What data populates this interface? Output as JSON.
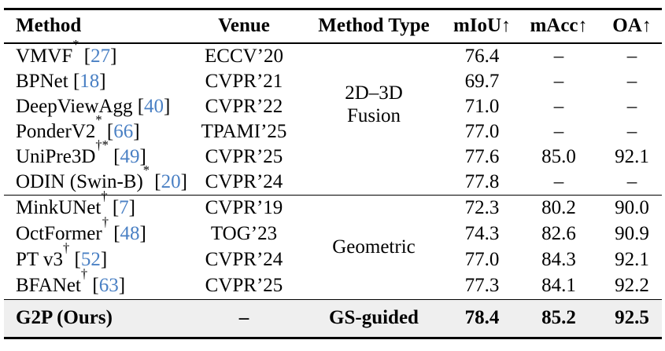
{
  "colors": {
    "cite_link": "#4a80c4",
    "highlight_row": "#efefef",
    "rule": "#000000",
    "text": "#000000"
  },
  "table": {
    "cite_brackets": [
      "[",
      "]"
    ],
    "columns": [
      {
        "label": "Method"
      },
      {
        "label": "Venue"
      },
      {
        "label": "Method Type"
      },
      {
        "label": "mIoU",
        "arrow": "↑"
      },
      {
        "label": "mAcc",
        "arrow": "↑"
      },
      {
        "label": "OA",
        "arrow": "↑"
      }
    ],
    "groups": [
      {
        "type_lines": [
          "2D–3D",
          "Fusion"
        ],
        "rows": [
          {
            "method": {
              "name": "VMVF",
              "marks": "*",
              "cite": "27"
            },
            "venue": "ECCV’20",
            "miou": "76.4",
            "macc": "–",
            "oa": "–"
          },
          {
            "method": {
              "name": "BPNet",
              "marks": "",
              "cite": "18"
            },
            "venue": "CVPR’21",
            "miou": "69.7",
            "macc": "–",
            "oa": "–"
          },
          {
            "method": {
              "name": "DeepViewAgg",
              "marks": "",
              "cite": "40"
            },
            "venue": "CVPR’22",
            "miou": "71.0",
            "macc": "–",
            "oa": "–"
          },
          {
            "method": {
              "name": "PonderV2",
              "marks": "*",
              "cite": "66"
            },
            "venue": "TPAMI’25",
            "miou": "77.0",
            "macc": "–",
            "oa": "–"
          },
          {
            "method": {
              "name": "UniPre3D",
              "marks": "†*",
              "cite": "49"
            },
            "venue": "CVPR’25",
            "miou": "77.6",
            "macc": "85.0",
            "oa": "92.1"
          },
          {
            "method": {
              "name": "ODIN (Swin-B)",
              "marks": "*",
              "cite": "20"
            },
            "venue": "CVPR’24",
            "miou": "77.8",
            "macc": "–",
            "oa": "–"
          }
        ]
      },
      {
        "type_lines": [
          "Geometric"
        ],
        "rows": [
          {
            "method": {
              "name": "MinkUNet",
              "marks": "†",
              "cite": "7"
            },
            "venue": "CVPR’19",
            "miou": "72.3",
            "macc": "80.2",
            "oa": "90.0"
          },
          {
            "method": {
              "name": "OctFormer",
              "marks": "†",
              "cite": "48"
            },
            "venue": "TOG’23",
            "miou": "74.3",
            "macc": "82.6",
            "oa": "90.9"
          },
          {
            "method": {
              "name": "PT v3",
              "marks": "†",
              "cite": "52"
            },
            "venue": "CVPR’24",
            "miou": "77.0",
            "macc": "84.3",
            "oa": "92.1"
          },
          {
            "method": {
              "name": "BFANet",
              "marks": "†",
              "cite": "63"
            },
            "venue": "CVPR’25",
            "miou": "77.3",
            "macc": "84.1",
            "oa": "92.2"
          }
        ]
      }
    ],
    "ours": {
      "method": {
        "name": "G2P (Ours)"
      },
      "venue": "–",
      "type": "GS-guided",
      "miou": "78.4",
      "macc": "85.2",
      "oa": "92.5"
    }
  }
}
